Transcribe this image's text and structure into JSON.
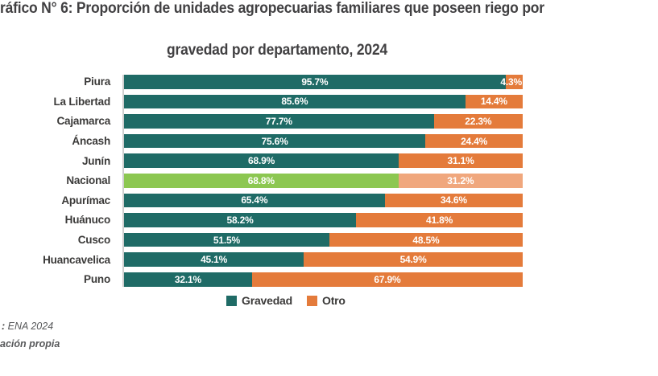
{
  "title": {
    "line1": "ráfico N° 6: Proporción de unidades agropecuarias familiares que poseen riego por",
    "line2": "gravedad por departamento, 2024"
  },
  "chart_data": {
    "type": "bar",
    "orientation": "horizontal",
    "stacked": true,
    "value_suffix": "%",
    "xlim": [
      0,
      100
    ],
    "categories": [
      "Piura",
      "La Libertad",
      "Cajamarca",
      "Áncash",
      "Junín",
      "Nacional",
      "Apurímac",
      "Huánuco",
      "Cusco",
      "Huancavelica",
      "Puno"
    ],
    "series": [
      {
        "name": "Gravedad",
        "color": "#1F6B66",
        "values": [
          95.7,
          85.6,
          77.7,
          75.6,
          68.9,
          68.8,
          65.4,
          58.2,
          51.5,
          45.1,
          32.1
        ]
      },
      {
        "name": "Otro",
        "color": "#E47B3B",
        "values": [
          4.3,
          14.4,
          22.3,
          24.4,
          31.1,
          31.2,
          34.6,
          41.8,
          48.5,
          54.9,
          67.9
        ]
      }
    ],
    "highlight": {
      "category": "Nacional",
      "colors": [
        "#8CC751",
        "#F0A77D"
      ]
    },
    "legend": [
      "Gravedad",
      "Otro"
    ],
    "legend_position": "bottom",
    "grid": false
  },
  "footer": {
    "source_prefix": ":",
    "source_text": " ENA 2024",
    "line2": "ación propia"
  },
  "colors": {
    "gravedad": "#1F6B66",
    "otro": "#E47B3B",
    "nacional_gravedad": "#8CC751",
    "nacional_otro": "#F0A77D",
    "axis_line": "#CFCFCF",
    "title_text": "#414042",
    "label_text": "#3B3A39",
    "footer_text": "#58595B",
    "value_text": "#FFFFFF"
  }
}
